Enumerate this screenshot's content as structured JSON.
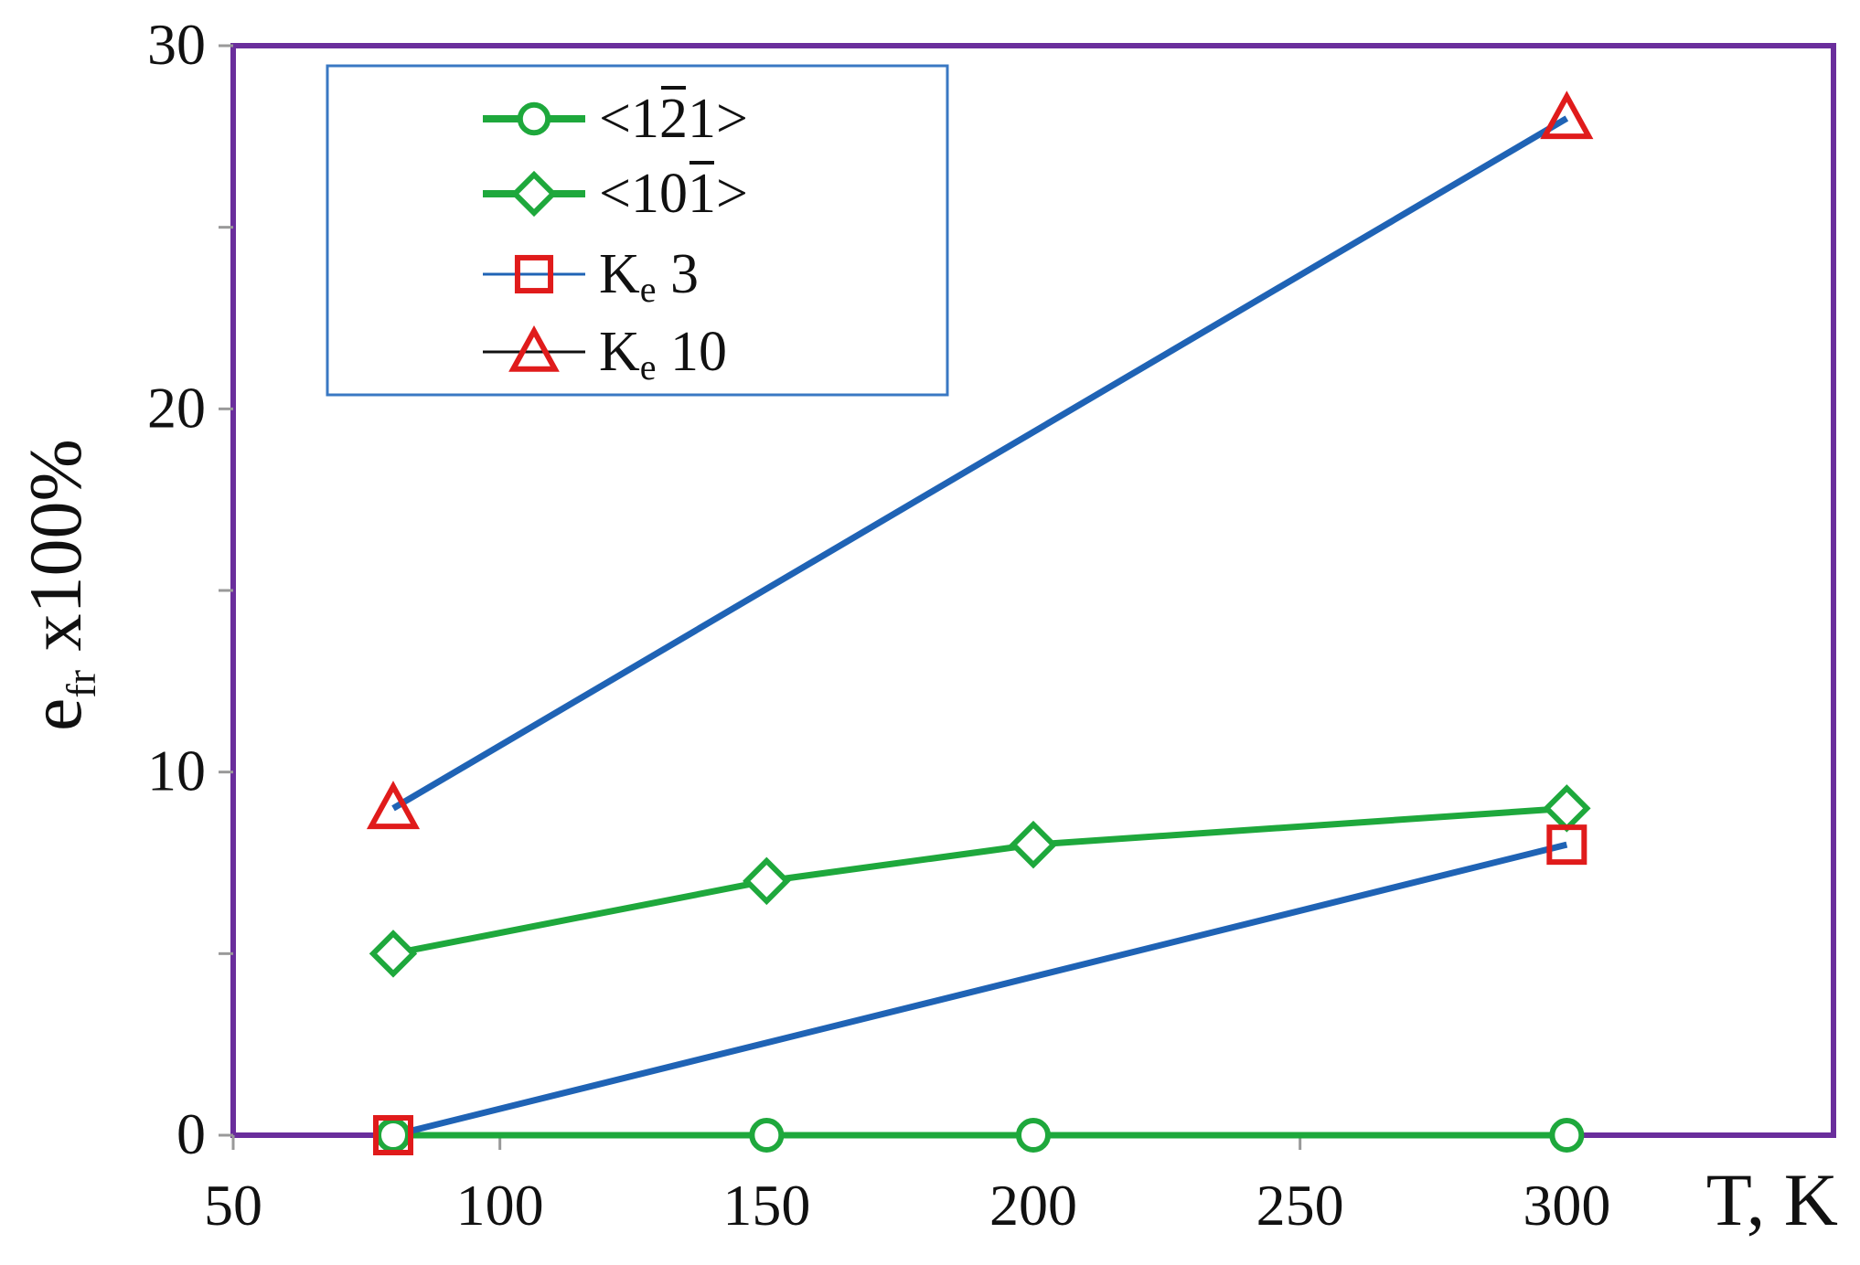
{
  "chart_data": {
    "type": "line",
    "title": "",
    "xlabel": "T, K",
    "ylabel": "e",
    "ylabel_sub": "fr",
    "ylabel_rest": " x100%",
    "xlim": [
      50,
      350
    ],
    "ylim": [
      0,
      30
    ],
    "x_ticks": [
      50,
      100,
      150,
      200,
      250,
      300
    ],
    "y_ticks_labeled": [
      0,
      10,
      20,
      30
    ],
    "y_ticks_minor": [
      5,
      15,
      25
    ],
    "grid": false,
    "legend_position": "top-left",
    "frame_color": "#6a2e9c",
    "series": [
      {
        "name": "<1 2 1>",
        "name_parts": [
          "<1",
          "2",
          "1>"
        ],
        "overbar_index": 1,
        "color": "#1ea83c",
        "marker": "circle",
        "marker_color": "#1ea83c",
        "x": [
          80,
          150,
          200,
          300
        ],
        "y": [
          0,
          0,
          0,
          0
        ]
      },
      {
        "name": "<10 1>",
        "name_parts": [
          "<10",
          "1",
          ">"
        ],
        "overbar_index": 1,
        "color": "#1ea83c",
        "marker": "diamond",
        "marker_color": "#1ea83c",
        "x": [
          80,
          150,
          200,
          300
        ],
        "y": [
          5,
          7,
          8,
          9
        ]
      },
      {
        "name": "Ke 3",
        "name_parts": [
          "K",
          "e",
          " 3"
        ],
        "color": "#1f63b5",
        "marker": "square",
        "marker_color": "#e01b1b",
        "x": [
          80,
          300
        ],
        "y": [
          0,
          8
        ]
      },
      {
        "name": "Ke 10",
        "name_parts": [
          "K",
          "e",
          " 10"
        ],
        "color": "#1f63b5",
        "legend_line_color": "#111111",
        "marker": "triangle",
        "marker_color": "#e01b1b",
        "x": [
          80,
          300
        ],
        "y": [
          9,
          28
        ]
      }
    ]
  }
}
